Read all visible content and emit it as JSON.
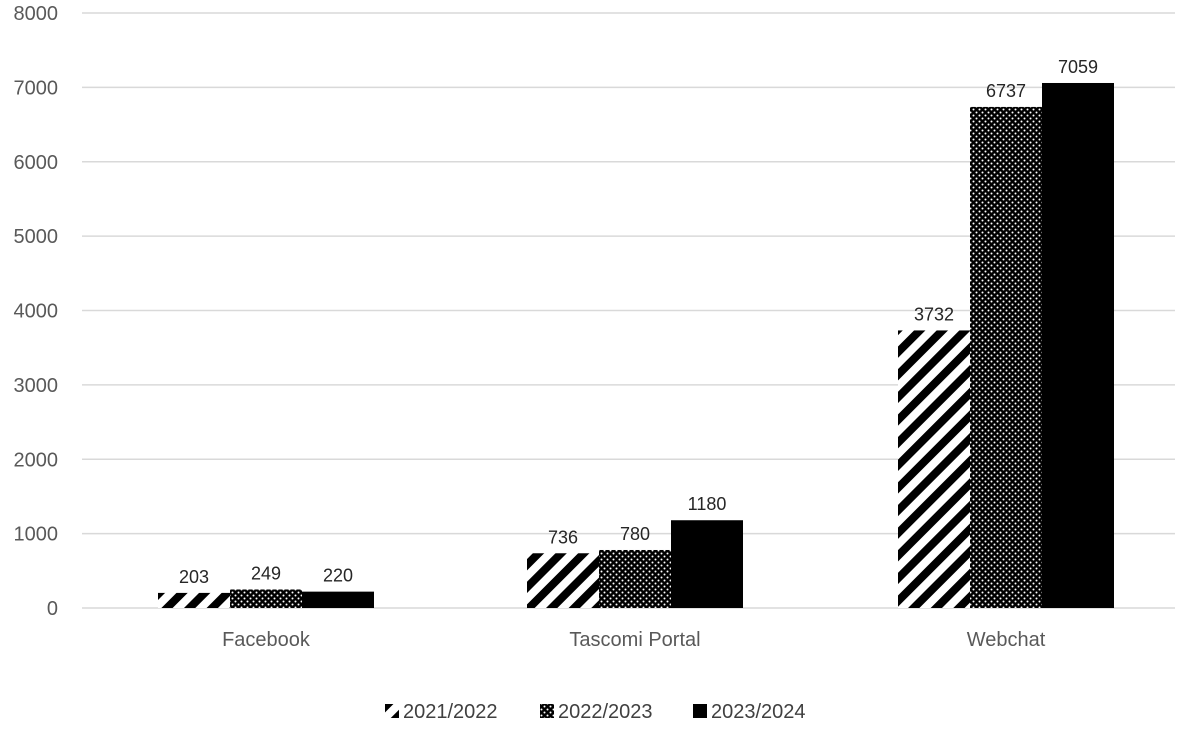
{
  "chart_data": {
    "type": "bar",
    "title": "",
    "xlabel": "",
    "ylabel": "",
    "categories": [
      "Facebook",
      "Tascomi Portal",
      "Webchat"
    ],
    "series": [
      {
        "name": "2021/2022",
        "values": [
          203,
          736,
          3732
        ],
        "pattern": "diagonal-stripes"
      },
      {
        "name": "2022/2023",
        "values": [
          249,
          780,
          6737
        ],
        "pattern": "dots"
      },
      {
        "name": "2023/2024",
        "values": [
          220,
          1180,
          7059
        ],
        "pattern": "solid"
      }
    ],
    "ylim": [
      0,
      8000
    ],
    "yticks": [
      0,
      1000,
      2000,
      3000,
      4000,
      5000,
      6000,
      7000,
      8000
    ],
    "grid": true,
    "legend_position": "bottom",
    "colors": {
      "bar": "#000000",
      "grid": "#d9d9d9",
      "tick_text": "#595959",
      "label_text": "#262626"
    }
  }
}
